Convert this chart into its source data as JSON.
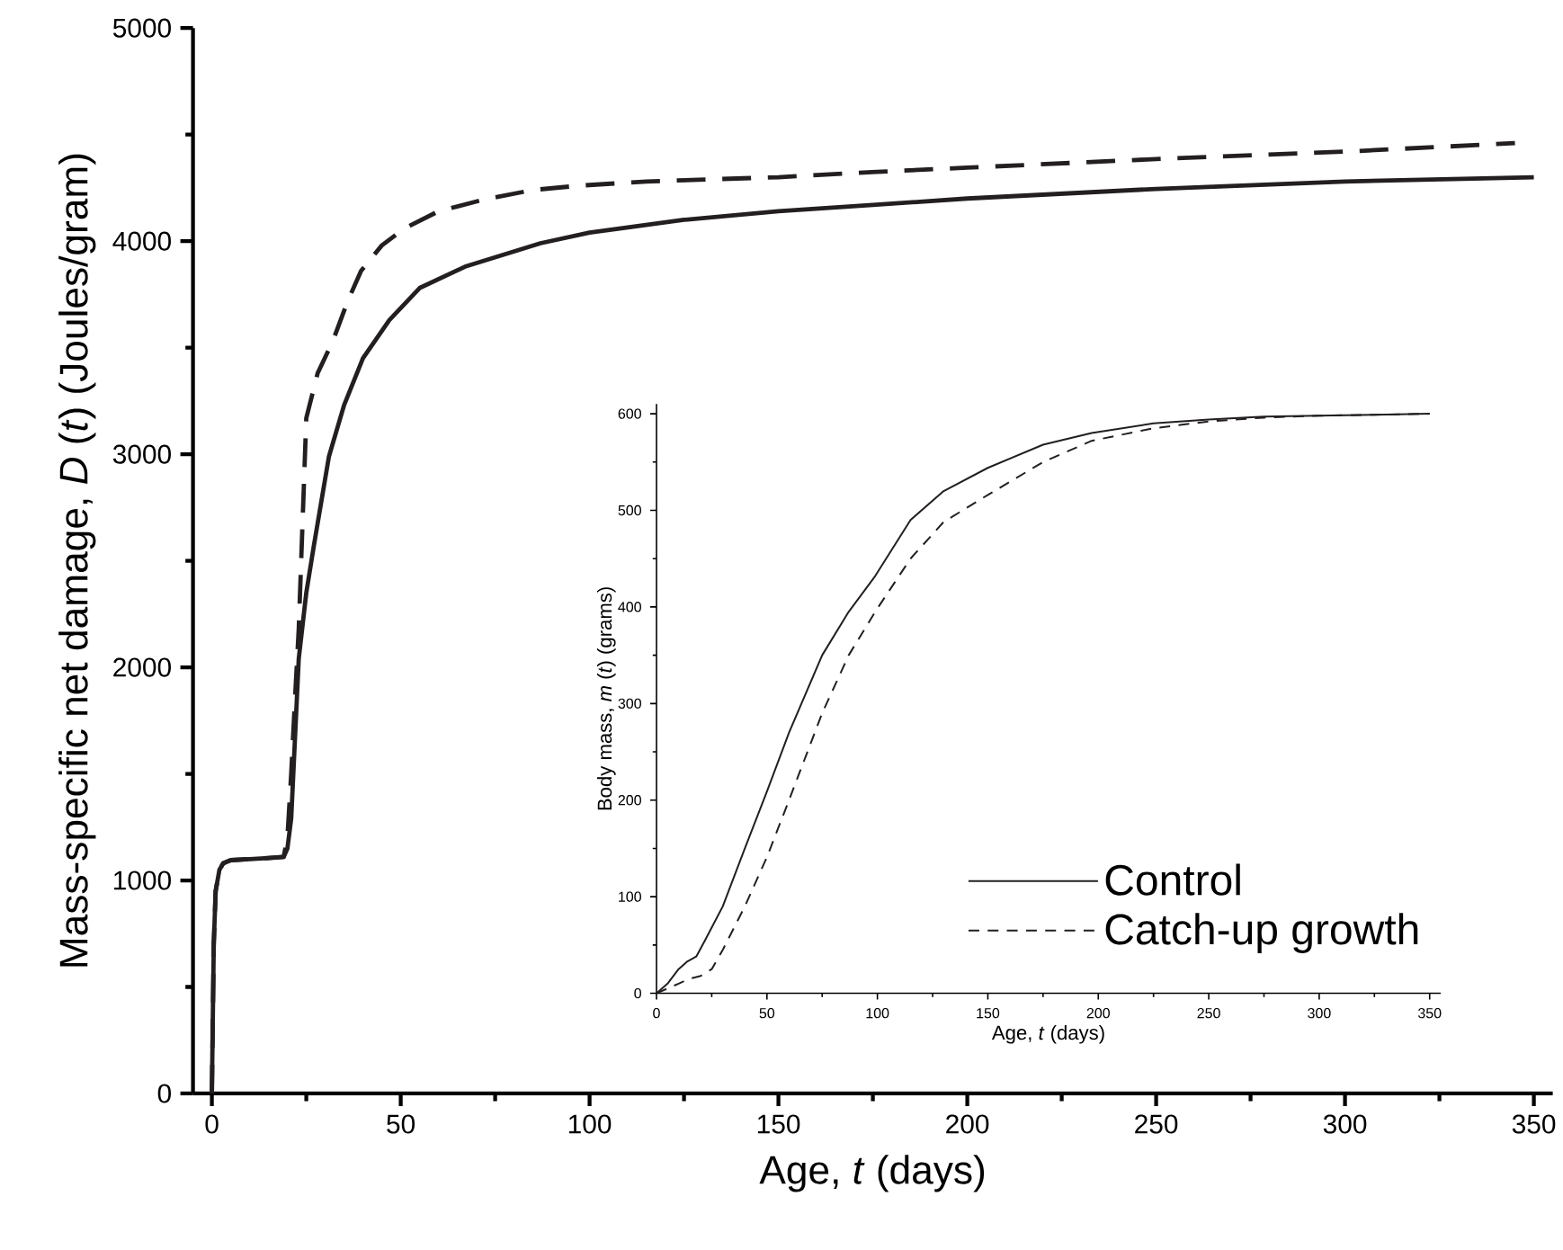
{
  "chart_data": [
    {
      "type": "line",
      "xlabel": "Age, *t* (days)",
      "ylabel": "Mass-specific net damage, *D* (*t*) (Joules/gram)",
      "xlim": [
        -5,
        355
      ],
      "ylim": [
        0,
        5000
      ],
      "xticks": [
        0,
        50,
        100,
        150,
        200,
        250,
        300,
        350
      ],
      "yticks": [
        0,
        1000,
        2000,
        3000,
        4000,
        5000
      ],
      "series": [
        {
          "color": "#231f20",
          "line_style": "solid",
          "x": [
            0,
            0.5,
            1,
            2,
            3,
            5,
            10,
            15,
            19,
            20,
            21,
            23,
            25,
            27,
            31,
            35,
            40,
            47,
            55,
            67,
            87,
            100,
            125,
            150,
            175,
            200,
            250,
            300,
            350
          ],
          "values": [
            0,
            700,
            950,
            1050,
            1080,
            1095,
            1100,
            1105,
            1110,
            1150,
            1290,
            2040,
            2350,
            2570,
            2990,
            3230,
            3450,
            3630,
            3780,
            3880,
            3990,
            4040,
            4100,
            4140,
            4170,
            4200,
            4245,
            4280,
            4300
          ]
        },
        {
          "color": "#231f20",
          "line_style": "dashed",
          "x": [
            0,
            0.5,
            1,
            2,
            3,
            5,
            10,
            15,
            19,
            20,
            21,
            22,
            23,
            25,
            28,
            32,
            36,
            39.5,
            45,
            51,
            60,
            72,
            85,
            97,
            115,
            132,
            150,
            176,
            200,
            250,
            300,
            345
          ],
          "values": [
            0,
            700,
            950,
            1050,
            1080,
            1095,
            1100,
            1105,
            1110,
            1200,
            1500,
            1850,
            2180,
            3170,
            3380,
            3530,
            3720,
            3860,
            3980,
            4060,
            4140,
            4195,
            4240,
            4260,
            4280,
            4290,
            4300,
            4325,
            4345,
            4385,
            4420,
            4460
          ]
        }
      ]
    },
    {
      "type": "line",
      "xlabel": "Age, *t* (days)",
      "ylabel": "Body mass, *m* (*t*) (grams)",
      "xlim": [
        0,
        355
      ],
      "ylim": [
        0,
        610
      ],
      "xticks": [
        0,
        50,
        100,
        150,
        200,
        250,
        300,
        350
      ],
      "yticks": [
        0,
        100,
        200,
        300,
        400,
        500,
        600
      ],
      "legend": "bottom right",
      "series": [
        {
          "name": "Control",
          "color": "#231f20",
          "line_style": "solid",
          "x": [
            0,
            5,
            10,
            14,
            18,
            22,
            30,
            40,
            50,
            60,
            75,
            87,
            99,
            115,
            130,
            150,
            175,
            197,
            225,
            250,
            275,
            300,
            325,
            350
          ],
          "values": [
            0,
            10,
            25,
            33,
            38,
            55,
            90,
            150,
            209,
            270,
            350,
            395,
            432,
            490,
            520,
            544,
            568,
            580,
            590,
            594,
            597,
            598,
            599,
            600
          ]
        },
        {
          "name": "Catch-up growth",
          "color": "#231f20",
          "line_style": "dashed",
          "x": [
            0,
            5,
            10,
            15,
            20,
            25,
            30,
            40,
            50,
            60,
            75,
            87,
            99,
            115,
            130,
            150,
            175,
            197,
            225,
            250,
            275,
            300,
            325,
            350
          ],
          "values": [
            0,
            5,
            10,
            15,
            18,
            25,
            45,
            90,
            141,
            200,
            290,
            350,
            395,
            450,
            488,
            516,
            550,
            572,
            585,
            592,
            596,
            598,
            599,
            600
          ]
        }
      ]
    }
  ]
}
